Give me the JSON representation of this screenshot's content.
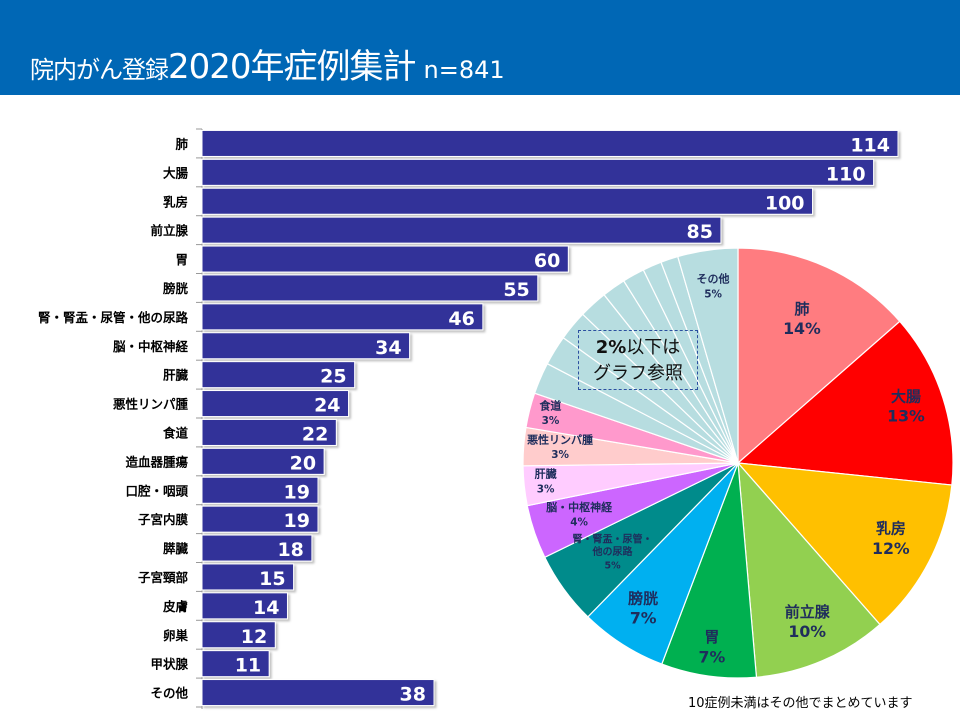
{
  "header": {
    "title_prefix": "院内がん登録",
    "title_main": "2020年症例集計",
    "title_n": "n=841"
  },
  "colors": {
    "header_bg": "#0067b5",
    "bar": "#333399"
  },
  "callout": {
    "line1_bold": "2%",
    "line1_rest": "以下は",
    "line2": "グラフ参照"
  },
  "note": "10症例未満はその他でまとめています",
  "chart_data": [
    {
      "type": "bar",
      "orientation": "horizontal",
      "title": "",
      "categories": [
        "肺",
        "大腸",
        "乳房",
        "前立腺",
        "胃",
        "膀胱",
        "腎・腎盂・尿管・他の尿路",
        "脳・中枢神経",
        "肝臓",
        "悪性リンパ腫",
        "食道",
        "造血器腫瘍",
        "口腔・咽頭",
        "子宮内膜",
        "膵臓",
        "子宮頸部",
        "皮膚",
        "卵巣",
        "甲状腺",
        "その他"
      ],
      "values": [
        114,
        110,
        100,
        85,
        60,
        55,
        46,
        34,
        25,
        24,
        22,
        20,
        19,
        19,
        18,
        15,
        14,
        12,
        11,
        38
      ],
      "xlabel": "",
      "ylabel": "",
      "xlim": [
        0,
        114
      ],
      "grid": false,
      "data_labels": true
    },
    {
      "type": "pie",
      "title": "",
      "start": "top",
      "direction": "clockwise",
      "slices": [
        {
          "name": "肺",
          "value": 114,
          "label": "肺",
          "pct": "14%",
          "color": "#ff7c80"
        },
        {
          "name": "大腸",
          "value": 110,
          "label": "大腸",
          "pct": "13%",
          "color": "#ff0000"
        },
        {
          "name": "乳房",
          "value": 100,
          "label": "乳房",
          "pct": "12%",
          "color": "#ffc000"
        },
        {
          "name": "前立腺",
          "value": 85,
          "label": "前立腺",
          "pct": "10%",
          "color": "#92d050"
        },
        {
          "name": "胃",
          "value": 60,
          "label": "胃",
          "pct": "7%",
          "color": "#00b050"
        },
        {
          "name": "膀胱",
          "value": 55,
          "label": "膀胱",
          "pct": "7%",
          "color": "#00b0f0"
        },
        {
          "name": "腎・腎盂・尿管・他の尿路",
          "value": 46,
          "label": "腎・腎盂・尿管・他の尿路",
          "label_lines": [
            "腎・腎盂・尿管・",
            "他の尿路"
          ],
          "pct": "5%",
          "color": "#008b8b"
        },
        {
          "name": "脳・中枢神経",
          "value": 34,
          "label": "脳・中枢神経",
          "pct": "4%",
          "color": "#cc66ff"
        },
        {
          "name": "肝臓",
          "value": 25,
          "label": "肝臓",
          "pct": "3%",
          "color": "#ffccff"
        },
        {
          "name": "悪性リンパ腫",
          "value": 24,
          "label": "悪性リンパ腫",
          "pct": "3%",
          "color": "#ffcccc"
        },
        {
          "name": "食道",
          "value": 22,
          "label": "食道",
          "pct": "3%",
          "color": "#ff99cc"
        },
        {
          "name": "造血器腫瘍",
          "value": 20,
          "label": "",
          "pct": "",
          "color": "#b7dde0"
        },
        {
          "name": "口腔・咽頭",
          "value": 19,
          "label": "",
          "pct": "",
          "color": "#b7dde0"
        },
        {
          "name": "子宮内膜",
          "value": 19,
          "label": "",
          "pct": "",
          "color": "#b7dde0"
        },
        {
          "name": "膵臓",
          "value": 18,
          "label": "",
          "pct": "",
          "color": "#b7dde0"
        },
        {
          "name": "子宮頸部",
          "value": 15,
          "label": "",
          "pct": "",
          "color": "#b7dde0"
        },
        {
          "name": "皮膚",
          "value": 14,
          "label": "",
          "pct": "",
          "color": "#b7dde0"
        },
        {
          "name": "卵巣",
          "value": 12,
          "label": "",
          "pct": "",
          "color": "#b7dde0"
        },
        {
          "name": "甲状腺",
          "value": 11,
          "label": "",
          "pct": "",
          "color": "#b7dde0"
        },
        {
          "name": "その他",
          "value": 38,
          "label": "その他",
          "pct": "5%",
          "color": "#b7dde0"
        }
      ]
    }
  ]
}
